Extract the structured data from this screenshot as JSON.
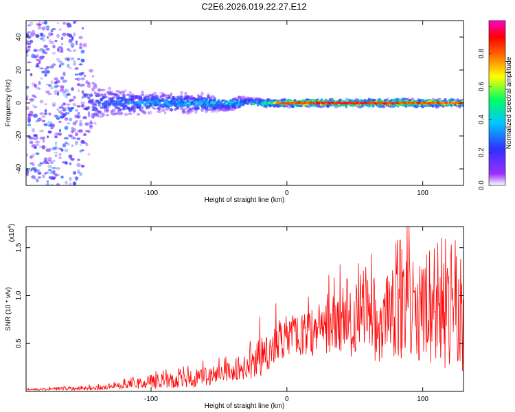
{
  "figure_title": "C2E6.2026.019.22.27.E12",
  "chart_data": [
    {
      "type": "heatmap",
      "title": "C2E6.2026.019.22.27.E12",
      "xlabel": "Height of straight line (km)",
      "ylabel": "Frequency (Hz)",
      "xlim": [
        -192,
        130
      ],
      "ylim": [
        -50,
        50
      ],
      "x_ticks": [
        -100,
        0,
        100
      ],
      "y_ticks": [
        40,
        20,
        0,
        -20,
        -40
      ],
      "x_tick_labels": [
        "-100",
        "0",
        "100"
      ],
      "y_tick_labels": [
        "40",
        "20",
        "0",
        "-20",
        "-40"
      ],
      "colorbar": {
        "label": "Normalized spectral amplitude",
        "range": [
          0,
          1
        ],
        "ticks": [
          0.0,
          0.2,
          0.4,
          0.6,
          0.8
        ],
        "tick_labels": [
          "0.0",
          "0.2",
          "0.4",
          "0.6",
          "0.8"
        ],
        "colormap": [
          "#ffffff",
          "#9a30ff",
          "#3030ff",
          "#00c8ff",
          "#00ff60",
          "#ffff00",
          "#ff6000",
          "#ff0000",
          "#ff00c8"
        ]
      },
      "band_profile": {
        "x": [
          -192,
          -150,
          -140,
          -100,
          -60,
          -40,
          -20,
          0,
          40,
          80,
          130
        ],
        "half_width_hz": [
          50,
          50,
          11,
          7,
          6,
          4,
          2.5,
          2.5,
          2.5,
          2.5,
          2.5
        ],
        "peak_amplitude": [
          0.25,
          0.28,
          0.32,
          0.42,
          0.48,
          0.52,
          0.6,
          0.9,
          0.95,
          0.92,
          0.85
        ]
      }
    },
    {
      "type": "line",
      "xlabel": "Height of straight line (km)",
      "ylabel": "SNR (10 * v/v)",
      "y_scale_label": "(x10",
      "y_scale_exponent": "4",
      "xlim": [
        -192,
        130
      ],
      "ylim": [
        0,
        1.72
      ],
      "x_ticks": [
        -100,
        0,
        100
      ],
      "y_ticks": [
        0.5,
        1.0,
        1.5
      ],
      "x_tick_labels": [
        "-100",
        "0",
        "100"
      ],
      "y_tick_labels": [
        "0.5",
        "1.0",
        "1.5"
      ],
      "line_color": "#ff0000",
      "series": [
        {
          "name": "SNR",
          "envelope_x": [
            -192,
            -150,
            -120,
            -100,
            -80,
            -60,
            -40,
            -20,
            0,
            20,
            40,
            60,
            80,
            90,
            100,
            110,
            120,
            130
          ],
          "envelope_mean": [
            0.02,
            0.03,
            0.06,
            0.1,
            0.12,
            0.15,
            0.22,
            0.35,
            0.55,
            0.62,
            0.75,
            0.72,
            0.8,
            0.85,
            0.8,
            0.75,
            0.78,
            0.7
          ],
          "envelope_spread": [
            0.01,
            0.02,
            0.04,
            0.08,
            0.08,
            0.1,
            0.12,
            0.2,
            0.2,
            0.25,
            0.35,
            0.45,
            0.5,
            0.55,
            0.5,
            0.5,
            0.55,
            0.5
          ],
          "peaks": [
            {
              "x": 90,
              "y": 1.72
            },
            {
              "x": 83,
              "y": 1.58
            },
            {
              "x": 124,
              "y": 1.58
            },
            {
              "x": 111,
              "y": 1.55
            },
            {
              "x": 128,
              "y": 1.38
            },
            {
              "x": 58,
              "y": 1.3
            },
            {
              "x": 44,
              "y": 1.18
            },
            {
              "x": 30,
              "y": 1.02
            },
            {
              "x": -20,
              "y": 0.78
            },
            {
              "x": -8,
              "y": 0.92
            }
          ]
        }
      ]
    }
  ]
}
